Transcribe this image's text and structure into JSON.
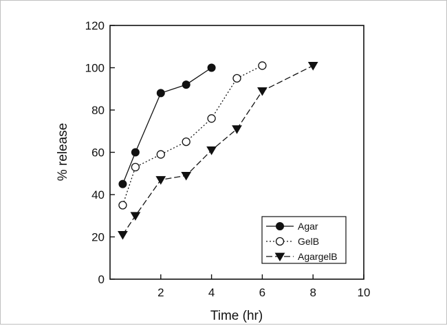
{
  "chart_data": {
    "type": "line",
    "title": "",
    "xlabel": "Time (hr)",
    "ylabel": "% release",
    "xlim": [
      0,
      10
    ],
    "ylim": [
      0,
      120
    ],
    "x_ticks": [
      2,
      4,
      6,
      8,
      10
    ],
    "y_ticks": [
      0,
      20,
      40,
      60,
      80,
      100,
      120
    ],
    "x_tick_labels": [
      "2",
      "4",
      "6",
      "8",
      "10"
    ],
    "y_tick_labels": [
      "0",
      "20",
      "40",
      "60",
      "80",
      "100",
      "120"
    ],
    "grid": false,
    "legend_position": "bottom-right",
    "series": [
      {
        "name": "Agar",
        "marker": "filled-circle",
        "line": "solid",
        "color": "#111111",
        "x": [
          0.5,
          1,
          2,
          3,
          4
        ],
        "y": [
          45,
          60,
          88,
          92,
          100
        ]
      },
      {
        "name": "GelB",
        "marker": "open-circle",
        "line": "dotted",
        "color": "#111111",
        "x": [
          0.5,
          1,
          2,
          3,
          4,
          5,
          6
        ],
        "y": [
          35,
          53,
          59,
          65,
          76,
          95,
          101
        ]
      },
      {
        "name": "AgargelB",
        "marker": "filled-triangle-down",
        "line": "dashed",
        "color": "#111111",
        "x": [
          0.5,
          1,
          2,
          3,
          4,
          5,
          6,
          8
        ],
        "y": [
          21,
          30,
          47,
          49,
          61,
          71,
          89,
          101
        ]
      }
    ]
  }
}
